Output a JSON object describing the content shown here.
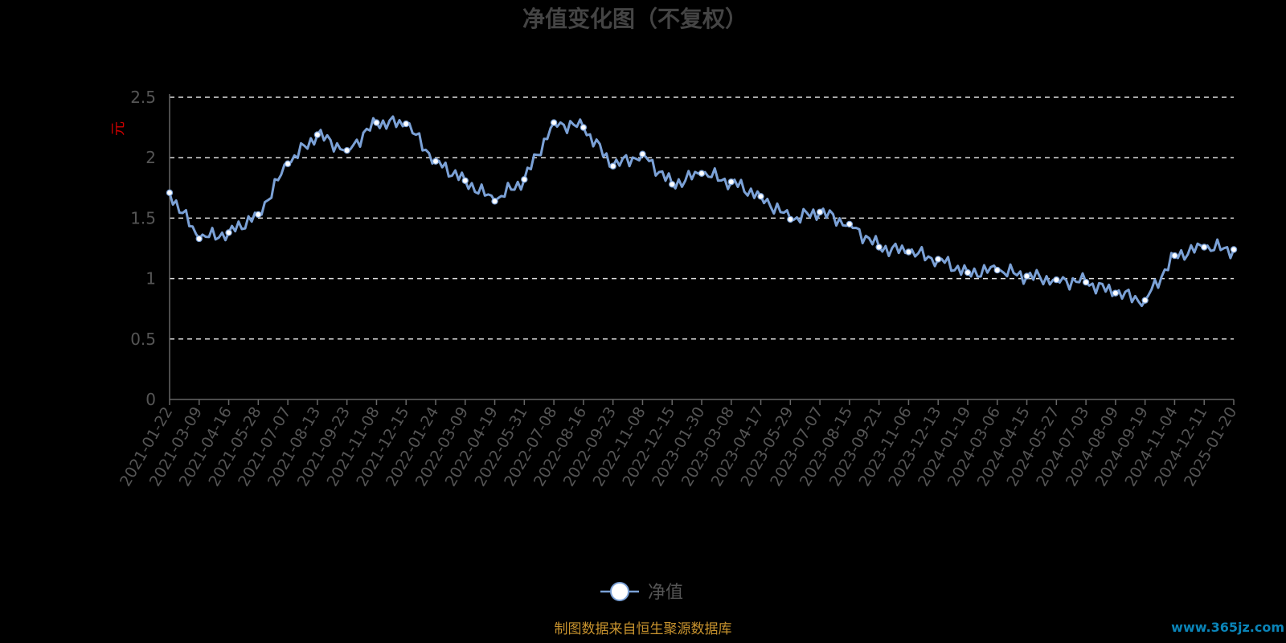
{
  "chart_data": {
    "type": "line",
    "title": "净值变化图（不复权）",
    "ylabel": "元",
    "ylim": [
      0,
      2.5
    ],
    "yticks": [
      "0",
      "0.5",
      "1",
      "1.5",
      "2",
      "2.5"
    ],
    "grid": true,
    "legend_position": "bottom-center",
    "x_tick_labels": [
      "2021-01-22",
      "2021-03-09",
      "2021-04-16",
      "2021-05-28",
      "2021-07-07",
      "2021-08-13",
      "2021-09-23",
      "2021-11-08",
      "2021-12-15",
      "2022-01-24",
      "2022-03-09",
      "2022-04-19",
      "2022-05-31",
      "2022-07-08",
      "2022-08-16",
      "2022-09-23",
      "2022-11-08",
      "2022-12-15",
      "2023-01-30",
      "2023-03-08",
      "2023-04-17",
      "2023-05-29",
      "2023-07-07",
      "2023-08-15",
      "2023-09-21",
      "2023-11-06",
      "2023-12-13",
      "2024-01-19",
      "2024-03-06",
      "2024-04-15",
      "2024-05-27",
      "2024-07-03",
      "2024-08-09",
      "2024-09-19",
      "2024-11-04",
      "2024-12-11",
      "2025-01-20"
    ],
    "series": [
      {
        "name": "净值",
        "color": "#7ba1d6",
        "values": [
          1.71,
          1.33,
          1.38,
          1.53,
          1.95,
          2.19,
          2.06,
          2.29,
          2.28,
          1.97,
          1.81,
          1.64,
          1.82,
          2.29,
          2.25,
          1.93,
          2.03,
          1.78,
          1.87,
          1.8,
          1.68,
          1.49,
          1.55,
          1.45,
          1.26,
          1.22,
          1.16,
          1.05,
          1.07,
          1.02,
          0.99,
          0.97,
          0.88,
          0.82,
          1.19,
          1.26,
          1.24
        ]
      }
    ]
  },
  "legend": {
    "label": "净值"
  },
  "footer": {
    "source": "制图数据来自恒生聚源数据库",
    "watermark": "www.365jz.com"
  }
}
